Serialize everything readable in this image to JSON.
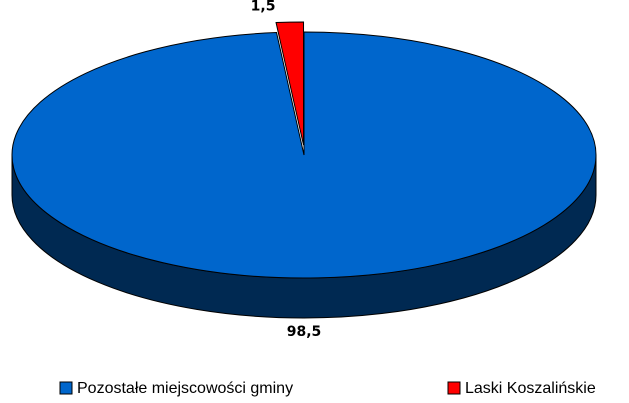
{
  "chart_data": {
    "type": "pie",
    "categories": [
      "Pozostałe miejscowości gminy",
      "Laski Koszalińskie"
    ],
    "values": [
      98.5,
      1.5
    ],
    "value_labels": [
      "98,5",
      "1,5"
    ],
    "colors": [
      "#0066cc",
      "#ff0000"
    ],
    "legend": "bottom"
  }
}
